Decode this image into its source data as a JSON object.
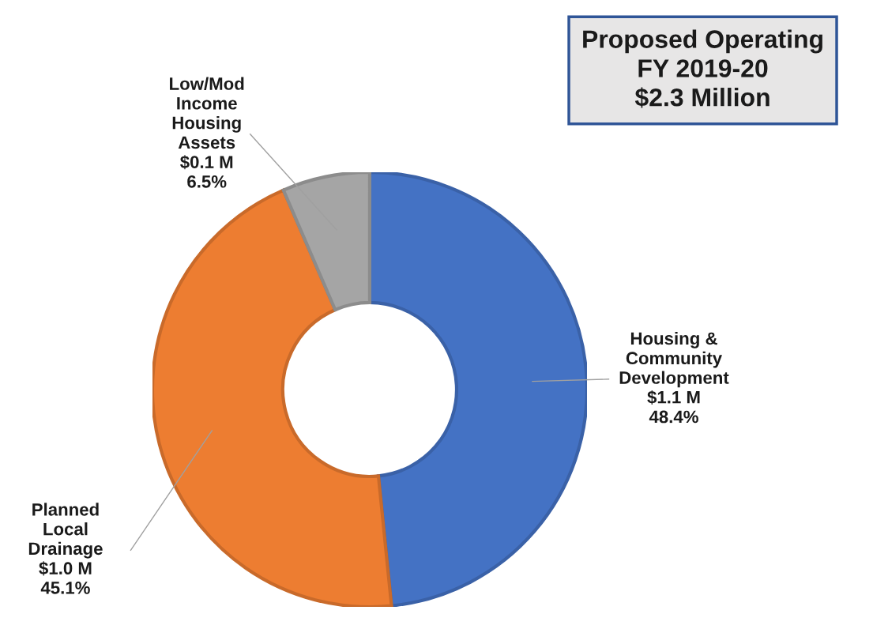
{
  "chart_data": {
    "type": "donut",
    "title": "Proposed Operating\nFY 2019-20\n$2.3 Million",
    "categories": [
      "Housing &\nCommunity\nDevelopment",
      "Planned\nLocal\nDrainage",
      "Low/Mod\nIncome\nHousing\nAssets"
    ],
    "values": [
      48.4,
      45.1,
      6.5
    ],
    "value_labels": [
      "$1.1 M\n48.4%",
      "$1.0 M\n45.1%",
      "$0.1 M\n6.5%"
    ],
    "colors": [
      "#4472c4",
      "#ed7d31",
      "#a5a5a5"
    ],
    "legend": false
  }
}
